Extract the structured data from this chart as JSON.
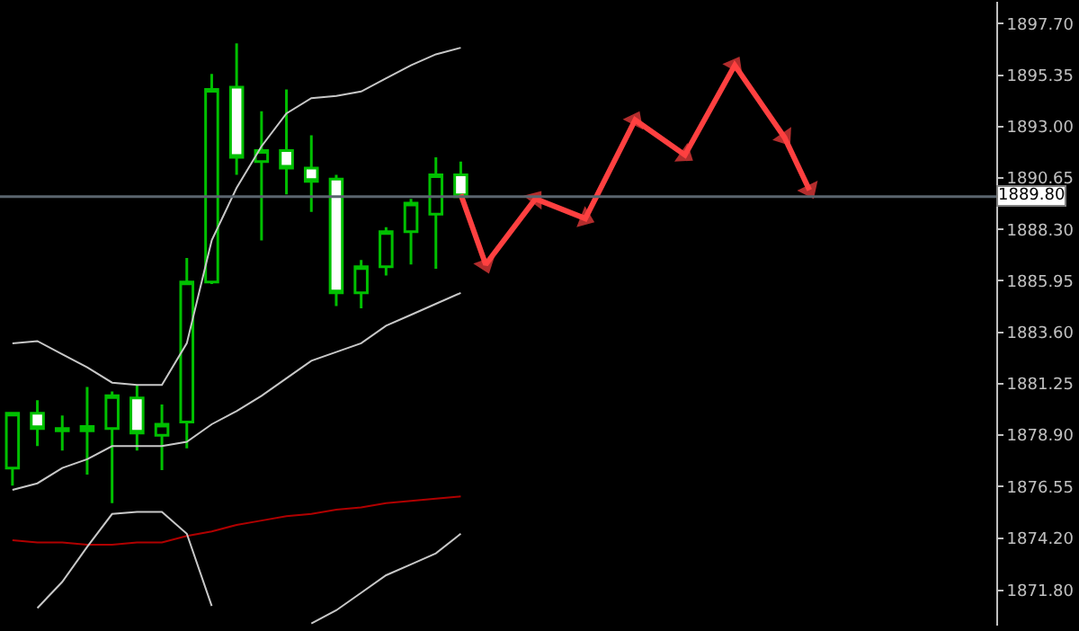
{
  "chart_data": {
    "type": "candlestick",
    "categories": [
      null,
      null,
      null,
      null,
      null,
      null,
      null,
      null,
      null,
      null,
      null,
      null,
      null,
      null,
      null,
      null,
      null,
      null,
      null,
      null,
      null,
      null,
      null,
      null,
      null,
      null,
      null,
      null,
      null,
      null,
      null,
      null,
      null,
      null,
      null,
      null,
      null,
      null,
      null,
      null
    ],
    "ohlc": [
      [
        1877.4,
        1879.9,
        1876.6,
        1879.9
      ],
      [
        1879.9,
        1880.5,
        1878.4,
        1879.2
      ],
      [
        1879.2,
        1879.8,
        1878.2,
        1879.1
      ],
      [
        1879.1,
        1881.1,
        1877.1,
        1879.3
      ],
      [
        1879.2,
        1880.9,
        1875.8,
        1880.7
      ],
      [
        1880.6,
        1881.2,
        1878.2,
        1879.0
      ],
      [
        1878.9,
        1880.3,
        1877.3,
        1879.4
      ],
      [
        1879.5,
        1887.0,
        1878.3,
        1885.9
      ],
      [
        1885.9,
        1895.4,
        1885.8,
        1894.7
      ],
      [
        1894.8,
        1896.8,
        1890.8,
        1891.6
      ],
      [
        1891.4,
        1893.7,
        1887.8,
        1891.9
      ],
      [
        1891.9,
        1894.7,
        1889.9,
        1891.1
      ],
      [
        1891.1,
        1892.6,
        1889.1,
        1890.5
      ],
      [
        1890.6,
        1890.8,
        1884.8,
        1885.4
      ],
      [
        1885.4,
        1886.9,
        1884.7,
        1886.6
      ],
      [
        1886.6,
        1888.4,
        1886.2,
        1888.2
      ],
      [
        1888.2,
        1889.7,
        1886.7,
        1889.5
      ],
      [
        1889.0,
        1891.6,
        1886.5,
        1890.8
      ],
      [
        1890.8,
        1891.4,
        1889.8,
        1889.8
      ],
      null,
      null,
      null,
      null,
      null,
      null,
      null,
      null,
      null,
      null,
      null,
      null,
      null,
      null,
      null,
      null,
      null,
      null,
      null,
      null,
      null
    ],
    "series": [
      {
        "type": "line",
        "color": "#c8c8c8",
        "values": [
          1883.1,
          1883.2,
          1882.6,
          1882.0,
          1881.3,
          1881.2,
          1881.2,
          1883.1,
          1887.8,
          1890.2,
          1892.1,
          1893.6,
          1894.3,
          1894.4,
          1894.6,
          1895.2,
          1895.8,
          1896.3,
          1896.6,
          null,
          null,
          null,
          null,
          null,
          null,
          null,
          null,
          null,
          null,
          null,
          null,
          null,
          null,
          null,
          null,
          null,
          null,
          null,
          null,
          null
        ]
      },
      {
        "type": "line",
        "color": "#c8c8c8",
        "values": [
          1876.4,
          1876.7,
          1877.4,
          1877.8,
          1878.4,
          1878.4,
          1878.4,
          1878.6,
          1879.4,
          1880.0,
          1880.7,
          1881.5,
          1882.3,
          1882.7,
          1883.1,
          1883.9,
          1884.4,
          1884.9,
          1885.4,
          null,
          null,
          null,
          null,
          null,
          null,
          null,
          null,
          null,
          null,
          null,
          null,
          null,
          null,
          null,
          null,
          null,
          null,
          null,
          null,
          null
        ]
      },
      {
        "type": "line",
        "color": "#b00000",
        "values": [
          1874.1,
          1874.0,
          1874.0,
          1873.9,
          1873.9,
          1874.0,
          1874.0,
          1874.3,
          1874.5,
          1874.8,
          1875.0,
          1875.2,
          1875.3,
          1875.5,
          1875.6,
          1875.8,
          1875.9,
          1876.0,
          1876.1,
          null,
          null,
          null,
          null,
          null,
          null,
          null,
          null,
          null,
          null,
          null,
          null,
          null,
          null,
          null,
          null,
          null,
          null,
          null,
          null,
          null
        ]
      },
      {
        "type": "line",
        "color": "#c8c8c8",
        "values": [
          null,
          1871.0,
          1872.2,
          1873.8,
          1875.3,
          1875.4,
          1875.4,
          1874.4,
          1871.1,
          null,
          null,
          null,
          1870.3,
          1870.9,
          1871.7,
          1872.5,
          1873.0,
          1873.5,
          1874.4,
          null,
          null,
          null,
          null,
          null,
          null,
          null,
          null,
          null,
          null,
          null,
          null,
          null,
          null,
          null,
          null,
          null,
          null,
          null,
          null,
          null
        ]
      },
      {
        "type": "line",
        "color": "#ff4040",
        "marker": "triangle",
        "values": [
          null,
          null,
          null,
          null,
          null,
          null,
          null,
          null,
          null,
          null,
          null,
          null,
          null,
          null,
          null,
          null,
          null,
          null,
          1889.9,
          1886.7,
          null,
          1889.7,
          null,
          1888.8,
          null,
          1893.3,
          null,
          1891.7,
          null,
          1895.8,
          null,
          1892.5,
          1890.1,
          null,
          null,
          null,
          null,
          null,
          null,
          null
        ]
      }
    ],
    "ylim": [
      1870.2,
      1898.7
    ],
    "yticks": [
      {
        "value": 1897.7,
        "label": "1897.70"
      },
      {
        "value": 1895.35,
        "label": "1895.35"
      },
      {
        "value": 1893.0,
        "label": "1893.00"
      },
      {
        "value": 1890.65,
        "label": "1890.65"
      },
      {
        "value": 1888.3,
        "label": "1888.30"
      },
      {
        "value": 1885.95,
        "label": "1885.95"
      },
      {
        "value": 1883.6,
        "label": "1883.60"
      },
      {
        "value": 1881.25,
        "label": "1881.25"
      },
      {
        "value": 1878.9,
        "label": "1878.90"
      },
      {
        "value": 1876.55,
        "label": "1876.55"
      },
      {
        "value": 1874.2,
        "label": "1874.20"
      },
      {
        "value": 1871.8,
        "label": "1871.80"
      }
    ],
    "ref_lines": [
      {
        "axis": "y",
        "value": 1889.8,
        "label": "1889.80",
        "color": "#5a646e"
      }
    ],
    "grid": false
  }
}
